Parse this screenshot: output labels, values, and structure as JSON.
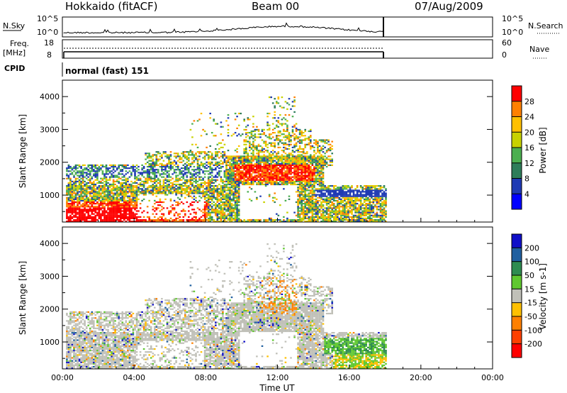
{
  "header": {
    "title": "Hokkaido (fitACF)",
    "beam": "Beam 00",
    "date": "07/Aug/2009"
  },
  "nsky_panel": {
    "left_label": "N.Sky",
    "right_label": "N.Search",
    "left_ticks": [
      "10^5",
      "10^0"
    ],
    "right_ticks": [
      "10^5",
      "10^0"
    ]
  },
  "freq_panel": {
    "left_label_1": "Freq.",
    "left_label_2": "[MHz]",
    "left_ticks": [
      "18",
      "8"
    ],
    "right_label": "Nave",
    "right_ticks": [
      "60",
      "0"
    ]
  },
  "cpid": {
    "label": "CPID",
    "program": "normal (fast) 151"
  },
  "chart_data": [
    {
      "type": "heatmap",
      "ylabel": "Slant Range [km]",
      "yticks": [
        "1000",
        "2000",
        "3000",
        "4000"
      ],
      "ylim": [
        180,
        4500
      ],
      "xlim": [
        0,
        24
      ],
      "colorbar": {
        "label": "Power [dB]",
        "ticks": [
          "4",
          "8",
          "12",
          "16",
          "20",
          "24",
          "28"
        ],
        "colors": [
          "#0000ff",
          "#1f3ab4",
          "#2e7d5a",
          "#4caf50",
          "#c8d200",
          "#ffc000",
          "#ff8000",
          "#ff0000"
        ]
      }
    },
    {
      "type": "heatmap",
      "xlabel": "Time UT",
      "ylabel": "Slant Range [km]",
      "xticks": [
        "00:00",
        "04:00",
        "08:00",
        "12:00",
        "16:00",
        "20:00",
        "00:00"
      ],
      "yticks": [
        "1000",
        "2000",
        "3000",
        "4000"
      ],
      "ylim": [
        180,
        4500
      ],
      "xlim": [
        0,
        24
      ],
      "colorbar": {
        "label": "Velocity [m s-1]",
        "ticks": [
          "200",
          "100",
          "50",
          "15",
          "-15",
          "-50",
          "-100",
          "-200"
        ],
        "colors": [
          "#1010c8",
          "#2060a0",
          "#2e8c50",
          "#60c830",
          "#c0c0b8",
          "#ffc000",
          "#ff8000",
          "#ff4000",
          "#ff0000"
        ]
      }
    }
  ]
}
